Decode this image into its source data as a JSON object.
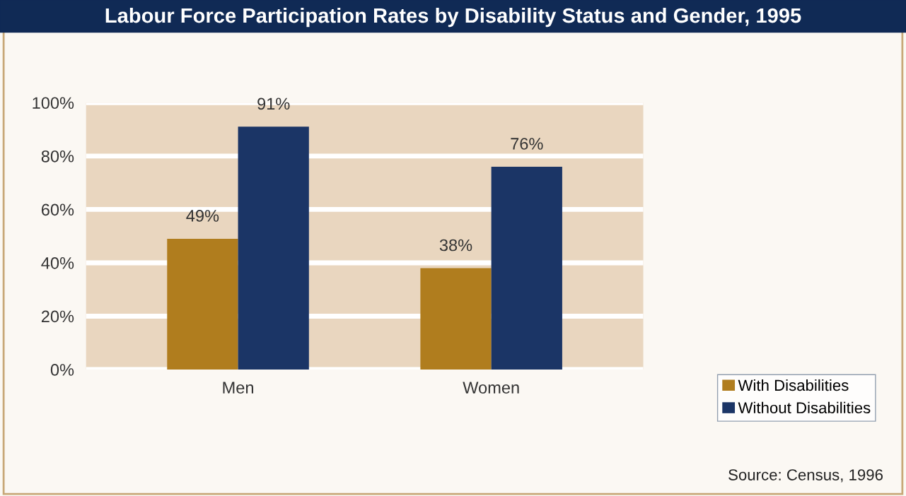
{
  "chart_data": {
    "type": "bar",
    "title": "Labour Force Participation Rates by Disability Status and Gender, 1995",
    "categories": [
      "Men",
      "Women"
    ],
    "series": [
      {
        "name": "With Disabilities",
        "color": "#b07d1e",
        "values": [
          49,
          38
        ],
        "value_labels": [
          "49%",
          "38%"
        ]
      },
      {
        "name": "Without Disabilities",
        "color": "#1b3566",
        "values": [
          91,
          76
        ],
        "value_labels": [
          "91%",
          "76%"
        ]
      }
    ],
    "ylim": [
      0,
      100
    ],
    "yticks": [
      {
        "value": 0,
        "label": "0%"
      },
      {
        "value": 20,
        "label": "20%"
      },
      {
        "value": 40,
        "label": "40%"
      },
      {
        "value": 60,
        "label": "60%"
      },
      {
        "value": 80,
        "label": "80%"
      },
      {
        "value": 100,
        "label": "100%"
      }
    ],
    "grid": "y",
    "legend": "bottom right",
    "annotations": [
      "Source: Census, 1996"
    ]
  }
}
